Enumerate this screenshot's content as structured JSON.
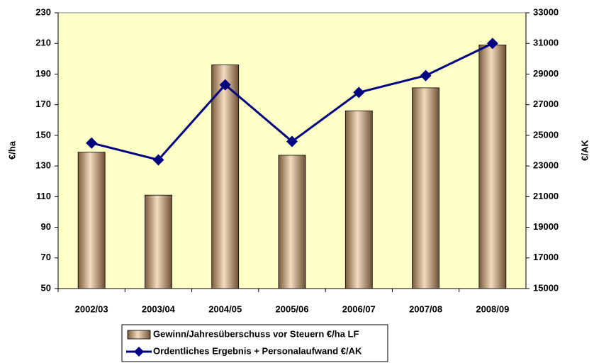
{
  "chart_data": {
    "type": "bar",
    "categories": [
      "2002/03",
      "2003/04",
      "2004/05",
      "2005/06",
      "2006/07",
      "2007/08",
      "2008/09"
    ],
    "series": [
      {
        "name": "Gewinn/Jahresüberschuss vor Steuern €/ha LF",
        "color": "#c8a078",
        "values": [
          139,
          111,
          196,
          137,
          166,
          181,
          209
        ]
      },
      {
        "name": "Ordentliches Ergebnis + Personalaufwand €/AK",
        "color": "#000080",
        "type": "line",
        "axis": "y2",
        "values": [
          24500,
          23400,
          28300,
          24600,
          27800,
          28900,
          31000
        ]
      }
    ],
    "ylabel": "€/ha",
    "y2label": "€/AK",
    "ylim": [
      50,
      230
    ],
    "yticks": [
      50,
      70,
      90,
      110,
      130,
      150,
      170,
      190,
      210,
      230
    ],
    "y2lim": [
      15000,
      33000
    ],
    "y2ticks": [
      15000,
      17000,
      19000,
      21000,
      23000,
      25000,
      27000,
      29000,
      31000,
      33000
    ],
    "grid": false,
    "legend": "bottom",
    "background": "#ffffc8"
  }
}
